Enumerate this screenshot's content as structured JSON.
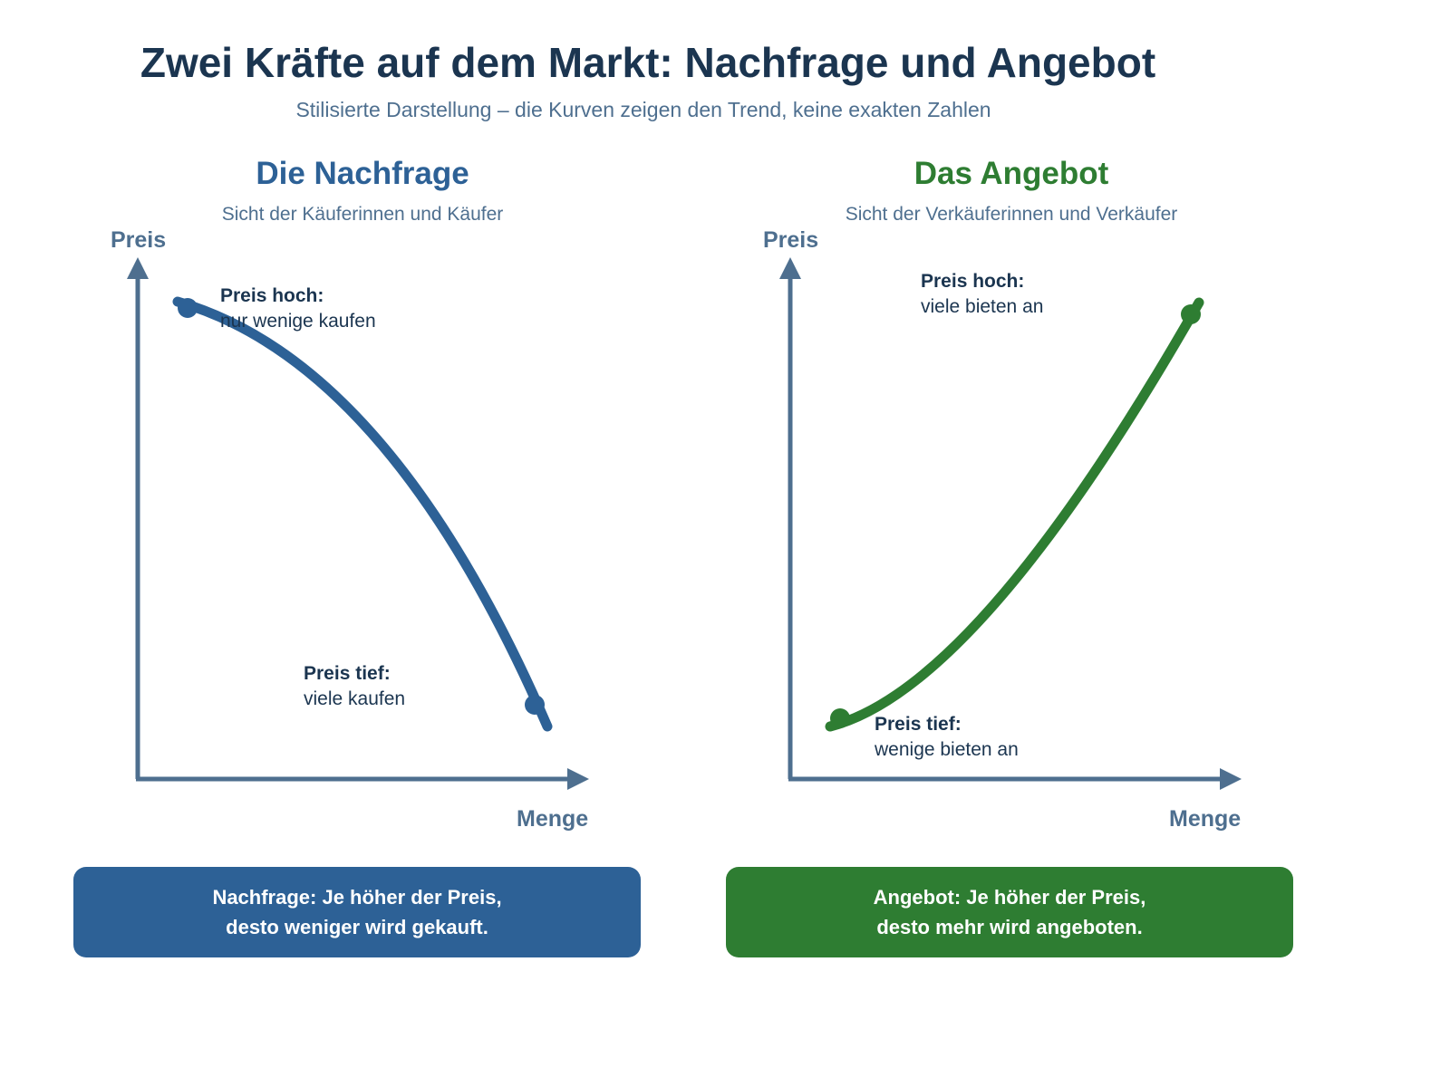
{
  "title": "Zwei Kräfte auf dem Markt: Nachfrage und Angebot",
  "subtitle": "Stilisierte Darstellung – die Kurven zeigen den Trend, keine exakten Zahlen",
  "colors": {
    "title": "#1b3550",
    "axis": "#4e6f8f",
    "demand": "#2d6196",
    "supply": "#2e7d32"
  },
  "demand": {
    "title": "Die Nachfrage",
    "subtitle": "Sicht der Käuferinnen und Käufer",
    "y_axis": "Preis",
    "x_axis": "Menge",
    "high_label": "Preis hoch:",
    "high_text": "nur wenige kaufen",
    "low_label": "Preis tief:",
    "low_text": "viele kaufen",
    "box_line1": "Nachfrage: Je höher der Preis,",
    "box_line2": "desto weniger wird gekauft."
  },
  "supply": {
    "title": "Das Angebot",
    "subtitle": "Sicht der Verkäuferinnen und Verkäufer",
    "y_axis": "Preis",
    "x_axis": "Menge",
    "high_label": "Preis hoch:",
    "high_text": "viele bieten an",
    "low_label": "Preis tief:",
    "low_text": "wenige bieten an",
    "box_line1": "Angebot: Je höher der Preis,",
    "box_line2": "desto mehr wird angeboten."
  }
}
